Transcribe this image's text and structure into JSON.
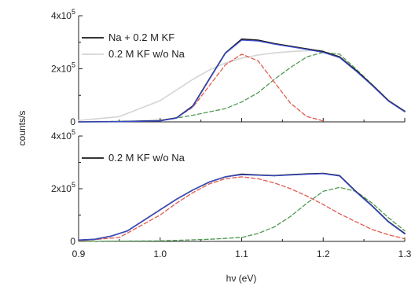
{
  "chart_data": {
    "type": "line",
    "ylabel": "counts/s",
    "xlabel": "hν (eV)",
    "xlim": [
      0.9,
      1.3
    ],
    "x_ticks": [
      "0.9",
      "1.0",
      "1.1",
      "1.2",
      "1.3"
    ],
    "y_tick_labels": {
      "zero": "0",
      "two": "2x10",
      "four": "4x10",
      "exp": "5"
    },
    "colors": {
      "data": "#1a1a1a",
      "fit": "#3a4bd0",
      "red": "#e05a4f",
      "green": "#4f9a52",
      "reference": "#d4d4d4"
    },
    "panels": [
      {
        "ylim": [
          0,
          400000
        ],
        "y_ticks": [
          0,
          200000,
          400000
        ],
        "legend": [
          "Na + 0.2 M KF",
          "0.2 M KF w/o Na"
        ],
        "series": [
          {
            "name": "Na + 0.2 M KF",
            "style": "data",
            "x": [
              0.9,
              0.95,
              1.0,
              1.02,
              1.04,
              1.06,
              1.08,
              1.1,
              1.12,
              1.14,
              1.16,
              1.18,
              1.2,
              1.22,
              1.24,
              1.26,
              1.28,
              1.3
            ],
            "y": [
              0,
              1000,
              5000,
              15000,
              60000,
              160000,
              260000,
              312000,
              308000,
              295000,
              285000,
              275000,
              265000,
              245000,
              195000,
              140000,
              80000,
              40000
            ]
          },
          {
            "name": "0.2 M KF w/o Na",
            "style": "reference",
            "x": [
              0.9,
              0.95,
              1.0,
              1.02,
              1.04,
              1.06,
              1.08,
              1.1,
              1.12,
              1.14,
              1.16,
              1.18,
              1.2
            ],
            "y": [
              5000,
              20000,
              80000,
              120000,
              160000,
              195000,
              222000,
              240000,
              252000,
              260000,
              265000,
              268000,
              270000
            ]
          },
          {
            "name": "",
            "style": "fit",
            "x": [
              0.9,
              0.95,
              1.0,
              1.02,
              1.04,
              1.06,
              1.08,
              1.1,
              1.12,
              1.14,
              1.16,
              1.18,
              1.2,
              1.22,
              1.24,
              1.26,
              1.28,
              1.3
            ],
            "y": [
              0,
              1000,
              4000,
              14000,
              58000,
              158000,
              258000,
              308000,
              305000,
              293000,
              283000,
              273000,
              262000,
              242000,
              192000,
              137000,
              78000,
              38000
            ]
          },
          {
            "name": "",
            "style": "red",
            "x": [
              1.0,
              1.02,
              1.04,
              1.06,
              1.08,
              1.1,
              1.12,
              1.14,
              1.16,
              1.18,
              1.2
            ],
            "y": [
              4000,
              15000,
              55000,
              135000,
              215000,
              255000,
              230000,
              150000,
              70000,
              20000,
              4000
            ]
          },
          {
            "name": "",
            "style": "green",
            "x": [
              0.9,
              1.0,
              1.04,
              1.08,
              1.1,
              1.12,
              1.14,
              1.16,
              1.18,
              1.2,
              1.22,
              1.24,
              1.26,
              1.28,
              1.3
            ],
            "y": [
              0,
              4000,
              25000,
              50000,
              75000,
              110000,
              160000,
              205000,
              245000,
              262000,
              255000,
              200000,
              140000,
              80000,
              38000
            ]
          }
        ]
      },
      {
        "ylim": [
          0,
          400000
        ],
        "y_ticks": [
          0,
          200000,
          400000
        ],
        "legend": [
          "0.2 M KF w/o Na"
        ],
        "series": [
          {
            "name": "0.2 M KF w/o Na",
            "style": "data",
            "x": [
              0.9,
              0.92,
              0.94,
              0.96,
              0.98,
              1.0,
              1.02,
              1.04,
              1.06,
              1.08,
              1.1,
              1.12,
              1.14,
              1.16,
              1.18,
              1.2,
              1.22,
              1.24,
              1.26,
              1.28,
              1.3
            ],
            "y": [
              5000,
              8000,
              20000,
              40000,
              80000,
              120000,
              160000,
              195000,
              225000,
              245000,
              255000,
              252000,
              250000,
              253000,
              256000,
              258000,
              250000,
              190000,
              135000,
              75000,
              30000
            ]
          },
          {
            "name": "",
            "style": "fit",
            "x": [
              0.9,
              0.92,
              0.94,
              0.96,
              0.98,
              1.0,
              1.02,
              1.04,
              1.06,
              1.08,
              1.1,
              1.12,
              1.14,
              1.16,
              1.18,
              1.2,
              1.22,
              1.24,
              1.26,
              1.28,
              1.3
            ],
            "y": [
              5000,
              8000,
              20000,
              40000,
              80000,
              120000,
              160000,
              195000,
              225000,
              245000,
              253000,
              251000,
              249000,
              252000,
              255000,
              257000,
              248000,
              188000,
              133000,
              73000,
              28000
            ]
          },
          {
            "name": "",
            "style": "red",
            "x": [
              0.9,
              0.95,
              1.0,
              1.02,
              1.04,
              1.06,
              1.08,
              1.1,
              1.12,
              1.14,
              1.16,
              1.18,
              1.2,
              1.22,
              1.24,
              1.26,
              1.28,
              1.3
            ],
            "y": [
              2000,
              15000,
              100000,
              145000,
              185000,
              218000,
              238000,
              245000,
              238000,
              222000,
              200000,
              172000,
              140000,
              105000,
              75000,
              45000,
              25000,
              10000
            ]
          },
          {
            "name": "",
            "style": "green",
            "x": [
              0.9,
              1.0,
              1.06,
              1.1,
              1.12,
              1.14,
              1.16,
              1.18,
              1.2,
              1.22,
              1.24,
              1.26,
              1.28,
              1.3
            ],
            "y": [
              0,
              2000,
              8000,
              15000,
              30000,
              55000,
              95000,
              145000,
              190000,
              205000,
              190000,
              145000,
              90000,
              40000
            ]
          }
        ]
      }
    ]
  }
}
